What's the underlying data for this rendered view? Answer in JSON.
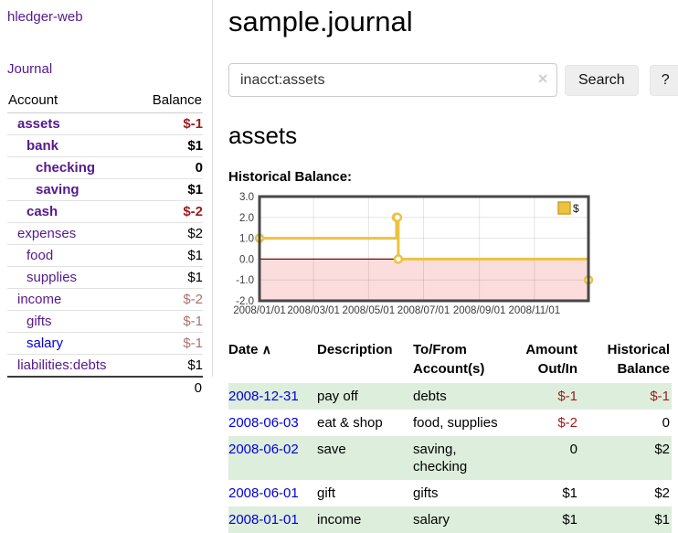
{
  "colors": {
    "link_purple": "#551a8b",
    "link_blue": "#0000dd",
    "negative_strong": "#9b1c1c",
    "negative_muted": "#b07070",
    "row_stripe_green": "#ddeedd",
    "chart_line_gold": "#edc240",
    "chart_negative_fill": "#fcdddd",
    "chart_zero_line": "#8b0000"
  },
  "sidebar": {
    "app_title": "hledger-web",
    "journal_label": "Journal",
    "accounts": {
      "header_account": "Account",
      "header_balance": "Balance",
      "rows": [
        {
          "name": "assets",
          "depth": 1,
          "bold": true,
          "link": "purple",
          "balance": "$-1",
          "balance_style": "neg"
        },
        {
          "name": "bank",
          "depth": 2,
          "bold": true,
          "link": "purple",
          "balance": "$1",
          "balance_style": "pos"
        },
        {
          "name": "checking",
          "depth": 3,
          "bold": true,
          "link": "purple",
          "balance": "0",
          "balance_style": "pos"
        },
        {
          "name": "saving",
          "depth": 3,
          "bold": true,
          "link": "purple",
          "balance": "$1",
          "balance_style": "pos"
        },
        {
          "name": "cash",
          "depth": 2,
          "bold": true,
          "link": "purple",
          "balance": "$-2",
          "balance_style": "neg"
        },
        {
          "name": "expenses",
          "depth": 1,
          "bold": false,
          "link": "purple",
          "balance": "$2",
          "balance_style": "pos"
        },
        {
          "name": "food",
          "depth": 2,
          "bold": false,
          "link": "purple",
          "balance": "$1",
          "balance_style": "pos"
        },
        {
          "name": "supplies",
          "depth": 2,
          "bold": false,
          "link": "purple",
          "balance": "$1",
          "balance_style": "pos"
        },
        {
          "name": "income",
          "depth": 1,
          "bold": false,
          "link": "purple",
          "balance": "$-2",
          "balance_style": "neg-muted"
        },
        {
          "name": "gifts",
          "depth": 2,
          "bold": false,
          "link": "purple",
          "balance": "$-1",
          "balance_style": "neg-muted"
        },
        {
          "name": "salary",
          "depth": 2,
          "bold": false,
          "link": "blue",
          "balance": "$-1",
          "balance_style": "neg-muted"
        },
        {
          "name": "liabilities:debts",
          "depth": 1,
          "bold": false,
          "link": "purple",
          "balance": "$1",
          "balance_style": "pos"
        }
      ],
      "total": "0"
    }
  },
  "main": {
    "title": "sample.journal",
    "search": {
      "value": "inacct:assets",
      "clear_icon": "✕",
      "button_label": "Search",
      "help_label": "?"
    },
    "section_title": "assets",
    "chart_label": "Historical Balance:",
    "register": {
      "headers": [
        "Date",
        "Description",
        "To/From Account(s)",
        "Amount Out/In",
        "Historical Balance"
      ],
      "sort_icon": "∧",
      "rows": [
        {
          "date": "2008-12-31",
          "description": "pay off",
          "accounts": "debts",
          "amount": "$-1",
          "amount_style": "neg",
          "balance": "$-1",
          "balance_style": "neg",
          "stripe": true
        },
        {
          "date": "2008-06-03",
          "description": "eat & shop",
          "accounts": "food, supplies",
          "amount": "$-2",
          "amount_style": "neg",
          "balance": "0",
          "balance_style": "pos",
          "stripe": false
        },
        {
          "date": "2008-06-02",
          "description": "save",
          "accounts": "saving, checking",
          "amount": "0",
          "amount_style": "pos",
          "balance": "$2",
          "balance_style": "pos",
          "stripe": true
        },
        {
          "date": "2008-06-01",
          "description": "gift",
          "accounts": "gifts",
          "amount": "$1",
          "amount_style": "pos",
          "balance": "$2",
          "balance_style": "pos",
          "stripe": false
        },
        {
          "date": "2008-01-01",
          "description": "income",
          "accounts": "salary",
          "amount": "$1",
          "amount_style": "pos",
          "balance": "$1",
          "balance_style": "pos",
          "stripe": true
        }
      ]
    }
  },
  "chart_data": {
    "type": "line",
    "subtype": "step-after-with-markers",
    "title": "Historical Balance of assets",
    "legend": [
      {
        "label": "$",
        "color": "#edc240"
      }
    ],
    "legend_position": "top-right",
    "grid": true,
    "ylim": [
      -2.0,
      3.0
    ],
    "y_ticks": [
      "3.0",
      "2.0",
      "1.0",
      "0.0",
      "-1.0",
      "-2.0"
    ],
    "y_tick_values": [
      3,
      2,
      1,
      0,
      -1,
      -2
    ],
    "x_ticks": [
      "2008/01/01",
      "2008/03/01",
      "2008/05/01",
      "2008/07/01",
      "2008/09/01",
      "2008/11/01"
    ],
    "x_tick_days": [
      0,
      60,
      121,
      182,
      244,
      305
    ],
    "x_domain_days": 365,
    "series": [
      {
        "name": "$",
        "points": [
          {
            "date": "2008-01-01",
            "day": 0,
            "value": 1
          },
          {
            "date": "2008-06-01",
            "day": 152,
            "value": 2
          },
          {
            "date": "2008-06-02",
            "day": 153,
            "value": 2
          },
          {
            "date": "2008-06-03",
            "day": 154,
            "value": 0
          },
          {
            "date": "2008-12-31",
            "day": 365,
            "value": -1
          }
        ]
      }
    ],
    "negative_region_shaded": true
  }
}
